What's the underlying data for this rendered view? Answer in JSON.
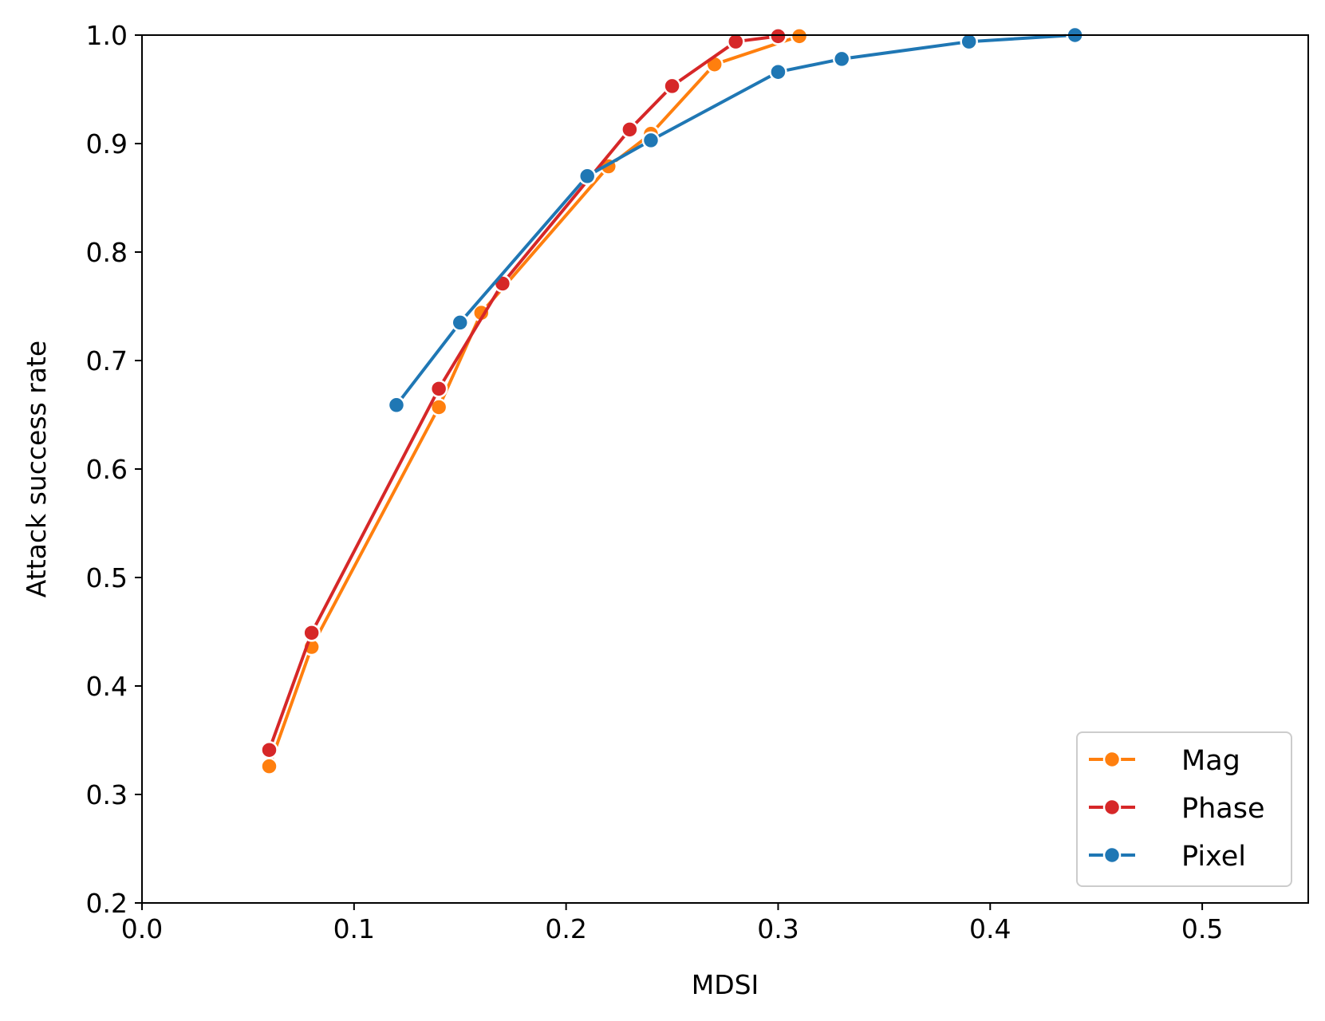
{
  "chart_data": {
    "type": "line",
    "xlabel": "MDSI",
    "ylabel": "Attack success rate",
    "xlim": [
      0.0,
      0.55
    ],
    "ylim": [
      0.2,
      1.0
    ],
    "xticks": [
      0.0,
      0.1,
      0.2,
      0.3,
      0.4,
      0.5
    ],
    "xtick_labels": [
      "0.0",
      "0.1",
      "0.2",
      "0.3",
      "0.4",
      "0.5"
    ],
    "yticks": [
      0.2,
      0.3,
      0.4,
      0.5,
      0.6,
      0.7,
      0.8,
      0.9,
      1.0
    ],
    "ytick_labels": [
      "0.2",
      "0.3",
      "0.4",
      "0.5",
      "0.6",
      "0.7",
      "0.8",
      "0.9",
      "1.0"
    ],
    "grid": false,
    "legend_position": "bottom-right",
    "series": [
      {
        "name": "Mag",
        "color": "#ff7f0e",
        "x": [
          0.06,
          0.08,
          0.14,
          0.16,
          0.22,
          0.24,
          0.27,
          0.31
        ],
        "y": [
          0.326,
          0.436,
          0.657,
          0.744,
          0.879,
          0.909,
          0.973,
          0.999
        ]
      },
      {
        "name": "Phase",
        "color": "#d62728",
        "x": [
          0.06,
          0.08,
          0.14,
          0.17,
          0.23,
          0.25,
          0.28,
          0.3
        ],
        "y": [
          0.341,
          0.449,
          0.674,
          0.771,
          0.913,
          0.953,
          0.994,
          0.999
        ]
      },
      {
        "name": "Pixel",
        "color": "#1f77b4",
        "x": [
          0.12,
          0.15,
          0.21,
          0.24,
          0.3,
          0.33,
          0.39,
          0.44
        ],
        "y": [
          0.659,
          0.735,
          0.87,
          0.903,
          0.966,
          0.978,
          0.994,
          1.0
        ]
      }
    ]
  }
}
